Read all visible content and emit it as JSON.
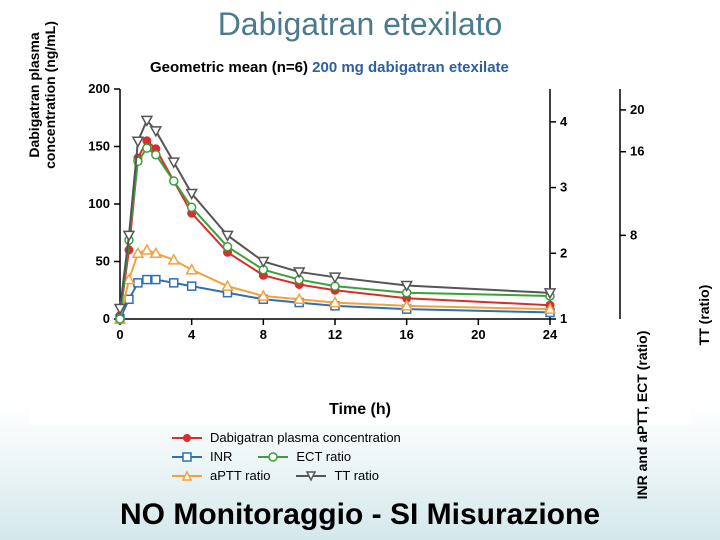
{
  "slide": {
    "title": "Dabigatran etexilato",
    "footer": "NO Monitoraggio - SI Misurazione",
    "background_gradient": [
      "#ffffff",
      "#d4e8ec"
    ]
  },
  "chart": {
    "type": "line",
    "title_prefix": "Geometric mean (n=6) ",
    "title_blue": "200 mg dabigatran etexilate",
    "title_fontsize": 15,
    "xlabel": "Time (h)",
    "label_fontsize": 16,
    "background_color": "#ffffff",
    "x": {
      "lim": [
        0,
        24
      ],
      "ticks": [
        0,
        4,
        8,
        12,
        16,
        20,
        24
      ]
    },
    "y_left": {
      "label": "Dabigatran plasma\nconcentration (ng/mL)",
      "lim": [
        0,
        200
      ],
      "ticks": [
        0,
        50,
        100,
        150,
        200
      ]
    },
    "y_right1": {
      "label": "INR and aPTT, ECT (ratio)",
      "lim": [
        1,
        4.5
      ],
      "ticks": [
        1,
        2,
        3,
        4
      ]
    },
    "y_right2": {
      "label": "TT (ratio)",
      "lim": [
        0,
        22
      ],
      "ticks": [
        8,
        16,
        20
      ]
    },
    "grid": false,
    "tick_length": 6,
    "axis_color": "#000000",
    "line_width": 2,
    "marker_size": 5,
    "series": [
      {
        "name": "Dabigatran plasma concentration",
        "axis": "left",
        "color": "#d92e2e",
        "marker": "circle-filled",
        "x": [
          0,
          0.5,
          1,
          1.5,
          2,
          3,
          4,
          6,
          8,
          10,
          12,
          16,
          24
        ],
        "y": [
          3,
          60,
          140,
          155,
          148,
          120,
          92,
          58,
          38,
          30,
          25,
          18,
          12
        ]
      },
      {
        "name": "INR",
        "axis": "right1",
        "color": "#2f6fb3",
        "marker": "square-open",
        "x": [
          0,
          0.5,
          1,
          1.5,
          2,
          3,
          4,
          6,
          8,
          10,
          12,
          16,
          24
        ],
        "y": [
          1.0,
          1.3,
          1.55,
          1.6,
          1.6,
          1.55,
          1.5,
          1.4,
          1.3,
          1.25,
          1.2,
          1.15,
          1.1
        ]
      },
      {
        "name": "aPTT ratio",
        "axis": "right1",
        "color": "#f2a23c",
        "marker": "triangle-open",
        "x": [
          0,
          0.5,
          1,
          1.5,
          2,
          3,
          4,
          6,
          8,
          10,
          12,
          16,
          24
        ],
        "y": [
          1.0,
          1.6,
          2.0,
          2.05,
          2.0,
          1.9,
          1.75,
          1.5,
          1.35,
          1.3,
          1.25,
          1.2,
          1.15
        ]
      },
      {
        "name": "ECT ratio",
        "axis": "right1",
        "color": "#3aa03a",
        "marker": "circle-open",
        "x": [
          0,
          0.5,
          1,
          1.5,
          2,
          3,
          4,
          6,
          8,
          10,
          12,
          16,
          24
        ],
        "y": [
          1.0,
          2.2,
          3.4,
          3.6,
          3.5,
          3.1,
          2.7,
          2.1,
          1.75,
          1.6,
          1.5,
          1.4,
          1.35
        ]
      },
      {
        "name": "TT ratio",
        "axis": "right2",
        "color": "#555555",
        "marker": "triangle-down-open",
        "x": [
          0,
          0.5,
          1,
          1.5,
          2,
          3,
          4,
          6,
          8,
          10,
          12,
          16,
          24
        ],
        "y": [
          1,
          8,
          17,
          19,
          18,
          15,
          12,
          8,
          5.5,
          4.5,
          4,
          3.2,
          2.5
        ]
      }
    ],
    "legend": {
      "items": [
        {
          "label": "Dabigatran plasma concentration",
          "series": 0
        },
        {
          "label": "INR",
          "series": 1
        },
        {
          "label": "ECT ratio",
          "series": 3
        },
        {
          "label": "aPTT ratio",
          "series": 2
        },
        {
          "label": "TT ratio",
          "series": 4
        }
      ]
    }
  }
}
